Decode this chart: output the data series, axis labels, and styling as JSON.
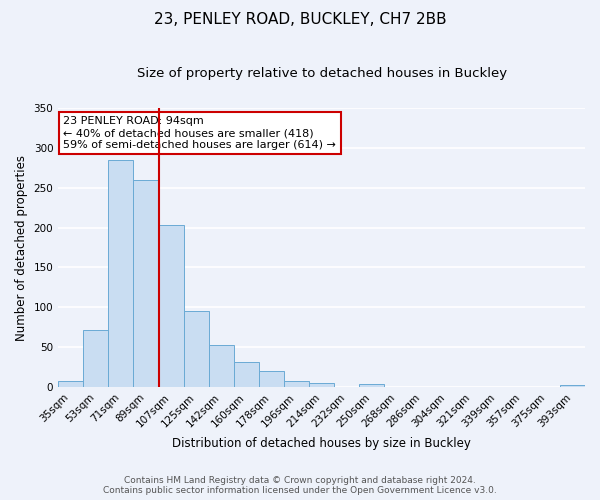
{
  "title": "23, PENLEY ROAD, BUCKLEY, CH7 2BB",
  "subtitle": "Size of property relative to detached houses in Buckley",
  "xlabel": "Distribution of detached houses by size in Buckley",
  "ylabel": "Number of detached properties",
  "bar_labels": [
    "35sqm",
    "53sqm",
    "71sqm",
    "89sqm",
    "107sqm",
    "125sqm",
    "142sqm",
    "160sqm",
    "178sqm",
    "196sqm",
    "214sqm",
    "232sqm",
    "250sqm",
    "268sqm",
    "286sqm",
    "304sqm",
    "321sqm",
    "339sqm",
    "357sqm",
    "375sqm",
    "393sqm"
  ],
  "bar_values": [
    8,
    72,
    285,
    260,
    203,
    95,
    53,
    31,
    20,
    7,
    5,
    0,
    4,
    0,
    0,
    0,
    0,
    0,
    0,
    0,
    2
  ],
  "bar_color": "#c9ddf2",
  "bar_edge_color": "#6aaad4",
  "vline_color": "#cc0000",
  "vline_x": 4,
  "annotation_title": "23 PENLEY ROAD: 94sqm",
  "annotation_line1": "← 40% of detached houses are smaller (418)",
  "annotation_line2": "59% of semi-detached houses are larger (614) →",
  "annotation_box_color": "#ffffff",
  "annotation_box_edge": "#cc0000",
  "ylim": [
    0,
    350
  ],
  "yticks": [
    0,
    50,
    100,
    150,
    200,
    250,
    300,
    350
  ],
  "footer1": "Contains HM Land Registry data © Crown copyright and database right 2024.",
  "footer2": "Contains public sector information licensed under the Open Government Licence v3.0.",
  "bg_color": "#eef2fa",
  "grid_color": "#ffffff",
  "title_fontsize": 11,
  "subtitle_fontsize": 9.5,
  "axis_label_fontsize": 8.5,
  "tick_fontsize": 7.5,
  "annotation_fontsize": 8,
  "footer_fontsize": 6.5
}
